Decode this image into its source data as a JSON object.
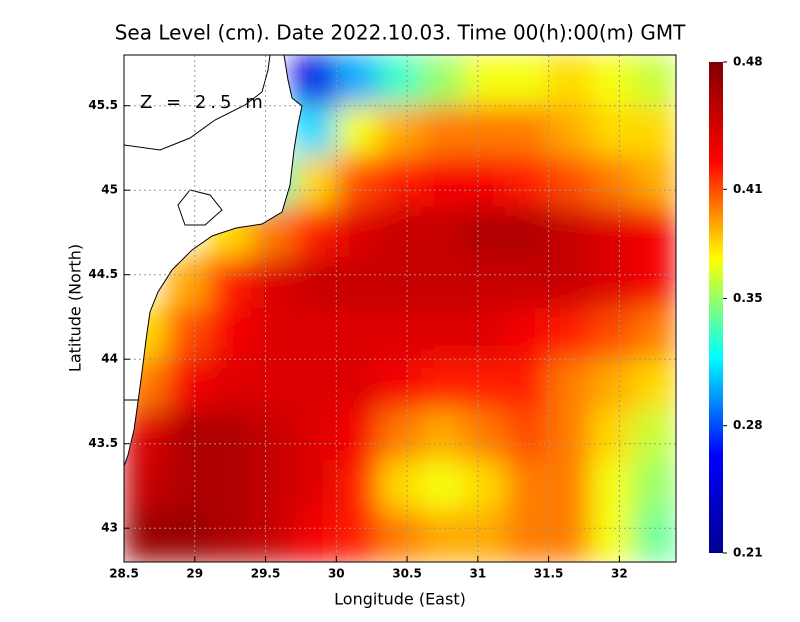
{
  "chart_data": {
    "type": "heatmap",
    "title": "Sea Level (cm). Date 2022.10.03. Time 00(h):00(m) GMT",
    "annotation": "Z = 2.5 m",
    "x_label": "Longitude (East)",
    "y_label": "Latitude (North)",
    "xlim": [
      28.5,
      32.4
    ],
    "ylim": [
      42.8,
      45.8
    ],
    "xticks": [
      28.5,
      29,
      29.5,
      30,
      30.5,
      31,
      31.5,
      32
    ],
    "yticks": [
      43,
      43.5,
      44,
      44.5,
      45,
      45.5
    ],
    "grid": true,
    "colormap": [
      "#00008f",
      "#0000ff",
      "#00ffff",
      "#ffff00",
      "#ff0000",
      "#800000"
    ],
    "clim": [
      0.21,
      0.48
    ],
    "colorbar_ticks": [
      0.21,
      0.28,
      0.35,
      0.41,
      0.48
    ],
    "values": [
      [
        null,
        null,
        null,
        null,
        0.25,
        0.3,
        0.33,
        0.35,
        0.37,
        0.37,
        0.38,
        0.37,
        0.36
      ],
      [
        null,
        null,
        null,
        null,
        0.31,
        0.37,
        0.39,
        0.4,
        0.4,
        0.4,
        0.39,
        0.38,
        0.38
      ],
      [
        null,
        null,
        null,
        0.33,
        0.38,
        0.41,
        0.42,
        0.43,
        0.43,
        0.42,
        0.41,
        0.4,
        0.39
      ],
      [
        null,
        null,
        0.38,
        0.4,
        0.42,
        0.44,
        0.45,
        0.45,
        0.46,
        0.46,
        0.45,
        0.44,
        0.43
      ],
      [
        null,
        0.39,
        0.42,
        0.44,
        0.45,
        0.45,
        0.45,
        0.45,
        0.45,
        0.45,
        0.45,
        0.44,
        0.43
      ],
      [
        0.38,
        0.41,
        0.43,
        0.44,
        0.44,
        0.44,
        0.44,
        0.44,
        0.44,
        0.43,
        0.42,
        0.41,
        0.4
      ],
      [
        0.4,
        0.43,
        0.44,
        0.44,
        0.44,
        0.44,
        0.43,
        0.42,
        0.42,
        0.42,
        0.4,
        0.39,
        0.38
      ],
      [
        0.44,
        0.46,
        0.46,
        0.45,
        0.44,
        0.43,
        0.4,
        0.39,
        0.4,
        0.41,
        0.4,
        0.38,
        0.36
      ],
      [
        0.45,
        0.46,
        0.46,
        0.45,
        0.44,
        0.42,
        0.38,
        0.37,
        0.38,
        0.4,
        0.4,
        0.37,
        0.35
      ],
      [
        0.47,
        0.47,
        0.46,
        0.45,
        0.43,
        0.42,
        0.4,
        0.39,
        0.39,
        0.4,
        0.4,
        0.37,
        0.34
      ]
    ]
  }
}
